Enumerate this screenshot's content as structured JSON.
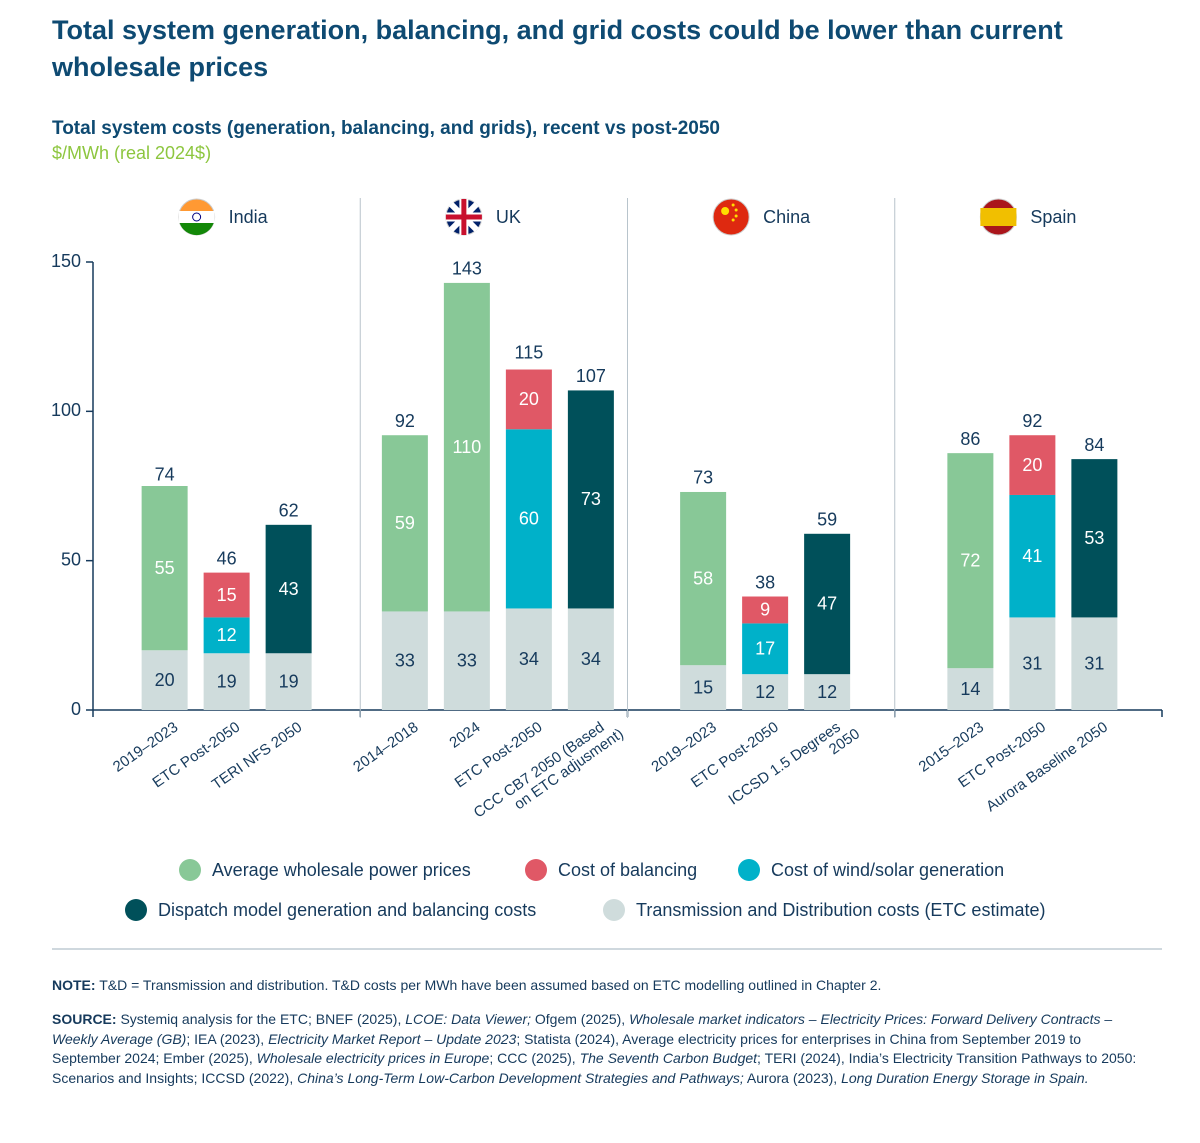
{
  "title": "Total system generation, balancing, and grid costs could be lower than current wholesale prices",
  "chart_data": {
    "type": "stacked-bar",
    "title": "Total system costs (generation, balancing, and grids), recent vs post-2050",
    "subtitle": "$/MWh (real 2024$)",
    "groups": [
      {
        "name": "India",
        "categories": [
          "2019–2023",
          "ETC Post-2050",
          "TERI NFS 2050"
        ]
      },
      {
        "name": "UK",
        "categories": [
          "2014–2018",
          "2024",
          "ETC Post-2050",
          "CCC CB7 2050 (Based\non ETC adjusment)"
        ]
      },
      {
        "name": "China",
        "categories": [
          "2019–2023",
          "ETC Post-2050",
          "ICCSD 1.5 Degrees\n2050"
        ]
      },
      {
        "name": "Spain",
        "categories": [
          "2015–2023",
          "ETC Post-2050",
          "Aurora Baseline 2050"
        ]
      }
    ],
    "series": [
      {
        "name": "Average wholesale power prices",
        "color": "#88c897",
        "values": [
          55,
          null,
          null,
          59,
          110,
          null,
          null,
          58,
          null,
          null,
          72,
          null,
          null
        ]
      },
      {
        "name": "Cost of balancing",
        "color": "#e05866",
        "values": [
          null,
          15,
          null,
          null,
          null,
          20,
          null,
          null,
          9,
          null,
          null,
          20,
          null
        ]
      },
      {
        "name": "Cost of wind/solar generation",
        "color": "#00b1c9",
        "values": [
          null,
          12,
          null,
          null,
          null,
          60,
          null,
          null,
          17,
          null,
          null,
          41,
          null
        ]
      },
      {
        "name": "Dispatch model generation and balancing costs",
        "color": "#00505a",
        "values": [
          null,
          null,
          43,
          null,
          null,
          null,
          73,
          null,
          null,
          47,
          null,
          null,
          53
        ]
      },
      {
        "name": "Transmission and Distribution costs (ETC estimate)",
        "color": "#cfdcdc",
        "values": [
          20,
          19,
          19,
          33,
          33,
          34,
          34,
          15,
          12,
          12,
          14,
          31,
          31
        ]
      }
    ],
    "totals": [
      74,
      46,
      62,
      92,
      143,
      115,
      107,
      73,
      38,
      59,
      86,
      92,
      84
    ],
    "ylim": [
      0,
      150
    ],
    "yticks": [
      0,
      50,
      100,
      150
    ],
    "grid": false
  },
  "notes": {
    "note_label": "NOTE:",
    "note": "T&D = Transmission and distribution. T&D costs per MWh have been assumed based on ETC modelling outlined in Chapter 2.",
    "source_label": "SOURCE:",
    "source": [
      "Systemiq analysis for the ETC; BNEF (2025), ",
      "LCOE: Data Viewer;",
      " Ofgem (2025), ",
      "Wholesale market indicators – Electricity Prices: Forward Delivery Contracts – Weekly Average (GB)",
      "; IEA (2023), ",
      "Electricity Market Report – Update 2023",
      "; Statista (2024), Average electricity prices for enterprises in China from September 2019 to September 2024; Ember (2025), ",
      "Wholesale electricity prices in Europe",
      "; CCC (2025), ",
      "The Seventh Carbon Budget",
      "; TERI (2024), India’s Electricity Transition Pathways to 2050: Scenarios and Insights; ICCSD (2022), ",
      "China’s Long-Term Low-Carbon Development Strategies and Pathways;",
      " Aurora (2023), ",
      "Long Duration Energy Storage in Spain."
    ]
  }
}
